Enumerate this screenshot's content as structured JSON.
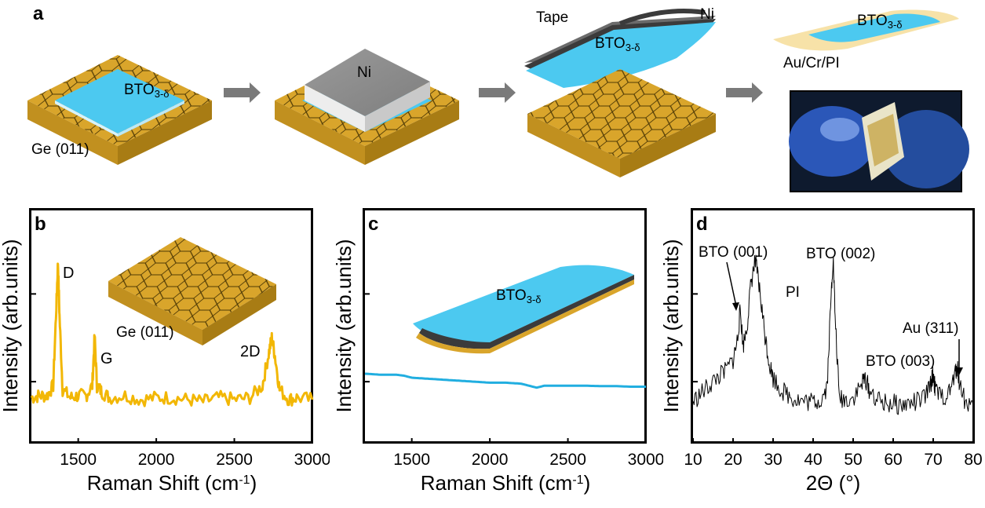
{
  "panel_a": {
    "letter": "a",
    "step1": {
      "substrate_label": "Ge (011)",
      "film_label": "BTO",
      "film_sub": "3-δ"
    },
    "step2": {
      "metal_label": "Ni"
    },
    "step3": {
      "tape_label": "Tape",
      "metal_label": "Ni",
      "film_label": "BTO",
      "film_sub": "3-δ"
    },
    "step4": {
      "substrate_label": "Au/Cr/PI",
      "film_label": "BTO",
      "film_sub": "3-δ"
    },
    "colors": {
      "film": "#4cc9f0",
      "substrate": "#d9a52b",
      "substrate_side": "#b88614",
      "metal": "#8c8c8c",
      "arrow": "#7a7a7a",
      "flexible": "#f7e2a8"
    }
  },
  "panel_b": {
    "letter": "b",
    "inset_label": "Ge (011)",
    "peaks": {
      "d": "D",
      "g": "G",
      "twod": "2D"
    }
  },
  "panel_c": {
    "letter": "c",
    "inset_label": "BTO",
    "inset_sub": "3-δ"
  },
  "panel_d": {
    "letter": "d",
    "annotations": {
      "bto001": "BTO (001)",
      "pi": "PI",
      "bto002": "BTO (002)",
      "au311": "Au (311)",
      "bto003": "BTO (003)"
    }
  },
  "chart_data": [
    {
      "type": "line",
      "panel": "b",
      "xlabel": "Raman Shift (cm",
      "xlabel_sup": "-1",
      "xlabel_end": ")",
      "ylabel": "Intensity (arb.units)",
      "xlim": [
        1200,
        3000
      ],
      "ylim": [
        0,
        1
      ],
      "xticks": [
        1500,
        2000,
        2500,
        3000
      ],
      "color": "#f2b705",
      "series": [
        {
          "x": [
            1200,
            1250,
            1300,
            1340,
            1360,
            1370,
            1380,
            1400,
            1450,
            1500,
            1550,
            1590,
            1605,
            1620,
            1650,
            1700,
            1800,
            1900,
            2000,
            2100,
            2200,
            2300,
            2400,
            2500,
            2600,
            2680,
            2720,
            2740,
            2760,
            2790,
            2850,
            2900,
            3000
          ],
          "values": [
            0.14,
            0.15,
            0.15,
            0.2,
            0.6,
            0.82,
            0.55,
            0.18,
            0.14,
            0.15,
            0.15,
            0.2,
            0.45,
            0.2,
            0.17,
            0.14,
            0.15,
            0.13,
            0.14,
            0.14,
            0.13,
            0.12,
            0.14,
            0.13,
            0.14,
            0.2,
            0.36,
            0.44,
            0.35,
            0.18,
            0.13,
            0.14,
            0.13
          ]
        }
      ],
      "grid": false
    },
    {
      "type": "line",
      "panel": "c",
      "xlabel": "Raman Shift (cm",
      "xlabel_sup": "-1",
      "xlabel_end": ")",
      "ylabel": "Intensity (arb.units)",
      "xlim": [
        1200,
        3000
      ],
      "ylim": [
        0,
        1
      ],
      "xticks": [
        1500,
        2000,
        2500,
        3000
      ],
      "color": "#21aee0",
      "series": [
        {
          "x": [
            1200,
            1300,
            1400,
            1450,
            1500,
            1600,
            1700,
            1800,
            1900,
            2000,
            2100,
            2200,
            2250,
            2300,
            2350,
            2400,
            2500,
            2600,
            2700,
            2800,
            2900,
            3000
          ],
          "values": [
            0.26,
            0.255,
            0.255,
            0.25,
            0.24,
            0.235,
            0.23,
            0.225,
            0.22,
            0.215,
            0.215,
            0.21,
            0.2,
            0.19,
            0.2,
            0.2,
            0.2,
            0.2,
            0.198,
            0.198,
            0.195,
            0.195
          ]
        }
      ],
      "grid": false
    },
    {
      "type": "line",
      "panel": "d",
      "xlabel": "2Θ (°)",
      "ylabel": "Intensity (arb.units)",
      "xlim": [
        10,
        80
      ],
      "ylim": [
        0,
        1
      ],
      "xticks": [
        10,
        20,
        30,
        40,
        50,
        60,
        70,
        80
      ],
      "color": "#000000",
      "series": [
        {
          "x": [
            10,
            12,
            14,
            16,
            18,
            20,
            21,
            21.8,
            22.5,
            23.5,
            24.5,
            25.5,
            26,
            27,
            28,
            29,
            30,
            32,
            34,
            36,
            38,
            40,
            42,
            43.5,
            44.5,
            45,
            45.5,
            46.5,
            48,
            50,
            52,
            53,
            54,
            56,
            58,
            60,
            62,
            64,
            66,
            68,
            69.5,
            70,
            70.5,
            72,
            74,
            75.5,
            76,
            76.5,
            78,
            80
          ],
          "values": [
            0.12,
            0.16,
            0.2,
            0.24,
            0.27,
            0.33,
            0.42,
            0.58,
            0.4,
            0.5,
            0.72,
            0.82,
            0.78,
            0.62,
            0.45,
            0.32,
            0.24,
            0.18,
            0.15,
            0.13,
            0.12,
            0.12,
            0.13,
            0.2,
            0.65,
            0.85,
            0.55,
            0.14,
            0.13,
            0.14,
            0.2,
            0.24,
            0.18,
            0.13,
            0.11,
            0.11,
            0.1,
            0.11,
            0.12,
            0.14,
            0.22,
            0.26,
            0.18,
            0.14,
            0.16,
            0.26,
            0.3,
            0.22,
            0.12,
            0.1
          ]
        }
      ],
      "grid": false
    }
  ]
}
